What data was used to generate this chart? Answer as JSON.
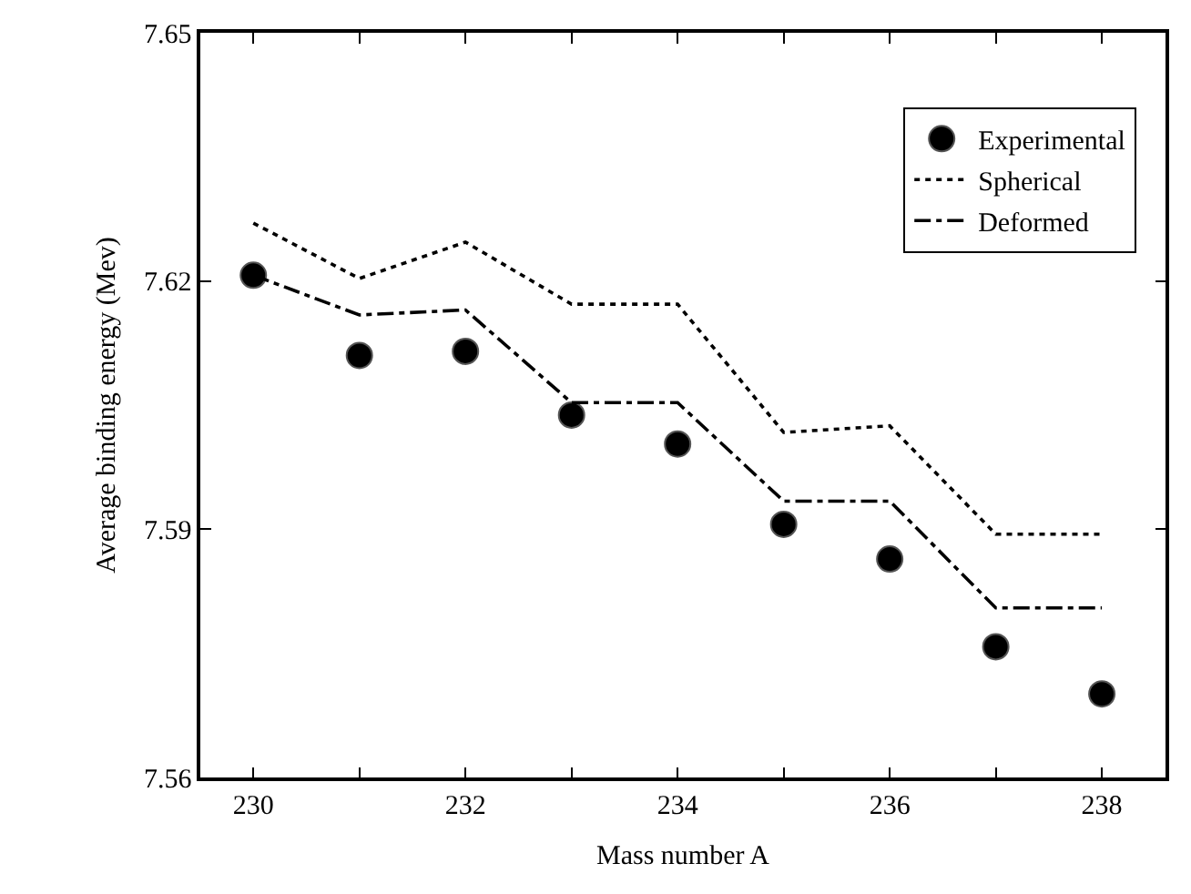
{
  "chart_data": {
    "type": "line",
    "xlabel": "Mass number A",
    "ylabel": "Average binding energy (Mev)",
    "x": [
      230,
      231,
      232,
      233,
      234,
      235,
      236,
      237,
      238
    ],
    "series": [
      {
        "name": "Experimental",
        "type": "scatter",
        "color": "#000000",
        "marker": "circle",
        "values": [
          7.6207,
          7.611,
          7.6115,
          7.6038,
          7.6003,
          7.5906,
          7.5864,
          7.5758,
          7.5701
        ]
      },
      {
        "name": "Spherical",
        "color": "#000000",
        "marker": "none",
        "line_style": "dotted",
        "values": [
          7.627,
          7.6203,
          7.6247,
          7.6172,
          7.6172,
          7.6017,
          7.6025,
          7.5894,
          7.5894
        ]
      },
      {
        "name": "Deformed",
        "color": "#000000",
        "marker": "none",
        "line_style": "dashdot",
        "values": [
          7.6207,
          7.6159,
          7.6165,
          7.6053,
          7.6053,
          7.5934,
          7.5934,
          7.5805,
          7.5805
        ]
      }
    ],
    "xlim": [
      229.5,
      238.6
    ],
    "xticks": [
      230,
      {
        "value": 231,
        "label": null
      },
      232,
      {
        "value": 233,
        "label": null
      },
      234,
      {
        "value": 235,
        "label": null
      },
      236,
      {
        "value": 237,
        "label": null
      },
      238
    ],
    "ylim": [
      7.56,
      7.65
    ],
    "yticks": [
      7.56,
      7.59,
      7.62,
      7.65
    ],
    "grid": false,
    "legend": "top right"
  }
}
